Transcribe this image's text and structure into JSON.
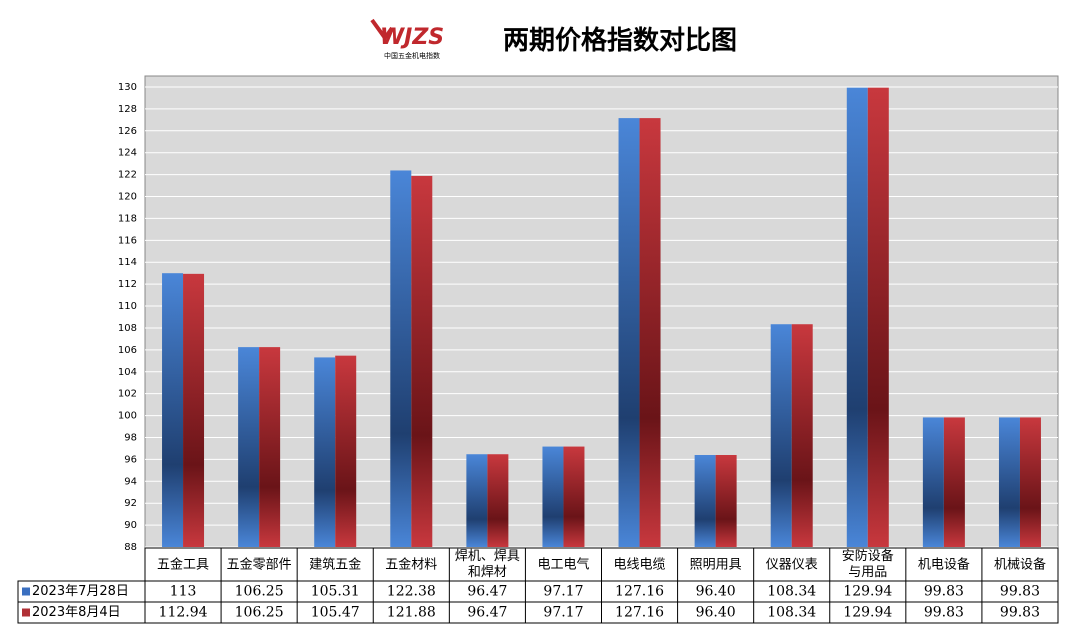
{
  "chart_data": {
    "type": "bar",
    "title": "两期价格指数对比图",
    "logo": "WJZS",
    "logo_subtitle": "中国五金机电指数",
    "categories": [
      "五金工具",
      "五金零部件",
      "建筑五金",
      "五金材料",
      "焊机、焊具和焊材",
      "电工电气",
      "电线电缆",
      "照明用具",
      "仪器仪表",
      "安防设备与用品",
      "机电设备",
      "机械设备"
    ],
    "series": [
      {
        "name": "2023年7月28日",
        "color": "#3a6fc0",
        "values": [
          113,
          106.25,
          105.31,
          122.38,
          96.47,
          97.17,
          127.16,
          96.4,
          108.34,
          129.94,
          99.83,
          99.83
        ],
        "value_labels": [
          "113",
          "106.25",
          "105.31",
          "122.38",
          "96.47",
          "97.17",
          "127.16",
          "96.40",
          "108.34",
          "129.94",
          "99.83",
          "99.83"
        ]
      },
      {
        "name": "2023年8月4日",
        "color": "#b03035",
        "values": [
          112.94,
          106.25,
          105.47,
          121.88,
          96.47,
          97.17,
          127.16,
          96.4,
          108.34,
          129.94,
          99.83,
          99.83
        ],
        "value_labels": [
          "112.94",
          "106.25",
          "105.47",
          "121.88",
          "96.47",
          "97.17",
          "127.16",
          "96.40",
          "108.34",
          "129.94",
          "99.83",
          "99.83"
        ]
      }
    ],
    "ylim": [
      88,
      130
    ],
    "yticks": [
      88,
      90,
      92,
      94,
      96,
      98,
      100,
      102,
      104,
      106,
      108,
      110,
      112,
      114,
      116,
      118,
      120,
      122,
      124,
      126,
      128,
      130
    ],
    "grid": true
  }
}
